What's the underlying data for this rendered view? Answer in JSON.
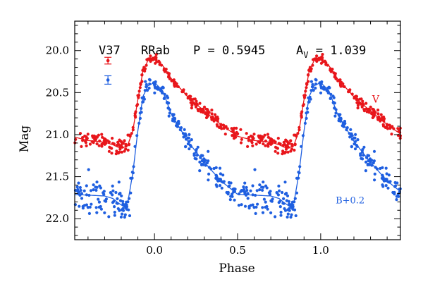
{
  "chart_data": {
    "type": "scatter",
    "title": "",
    "xlabel": "Phase",
    "ylabel": "Mag",
    "xlim": [
      -0.48,
      1.48
    ],
    "ylim": [
      22.25,
      19.65
    ],
    "y_inverted": true,
    "x_ticks": [
      "0.0",
      "0.5",
      "1.0"
    ],
    "x_tick_values": [
      0.0,
      0.5,
      1.0
    ],
    "y_ticks": [
      "20.0",
      "20.5",
      "21.0",
      "21.5",
      "22.0"
    ],
    "y_tick_values": [
      20.0,
      20.5,
      21.0,
      21.5,
      22.0
    ],
    "annotation": {
      "star": "V37",
      "type": "RRab",
      "period": "P = 0.5945",
      "amp_prefix": "A",
      "amp_sub": "V",
      "amp_value": " = 1.039"
    },
    "series": [
      {
        "name": "V",
        "color": "#e8161b",
        "offset": 0.0,
        "model_phase": [
          0.0,
          0.05,
          0.1,
          0.2,
          0.3,
          0.4,
          0.5,
          0.6,
          0.7,
          0.75,
          0.78,
          0.81,
          0.84,
          0.87,
          0.9,
          0.93,
          0.96,
          1.0
        ],
        "model_mag": [
          20.1,
          20.18,
          20.33,
          20.55,
          20.72,
          20.88,
          21.02,
          21.07,
          21.09,
          21.12,
          21.15,
          21.16,
          21.12,
          20.95,
          20.58,
          20.25,
          20.12,
          20.1
        ],
        "error_bar": {
          "x": -0.28,
          "y": 20.12,
          "err": 0.04
        }
      },
      {
        "name": "B+0.2",
        "color": "#1f5fe0",
        "offset": 0.2,
        "model_phase": [
          0.0,
          0.05,
          0.1,
          0.2,
          0.3,
          0.4,
          0.5,
          0.6,
          0.7,
          0.75,
          0.78,
          0.81,
          0.84,
          0.87,
          0.9,
          0.93,
          0.96,
          1.0
        ],
        "model_mag": [
          20.38,
          20.48,
          20.75,
          21.08,
          21.33,
          21.55,
          21.71,
          21.72,
          21.73,
          21.76,
          21.81,
          21.85,
          21.8,
          21.45,
          20.95,
          20.55,
          20.42,
          20.38
        ],
        "error_bar": {
          "x": -0.28,
          "y": 20.35,
          "err": 0.05
        }
      }
    ],
    "legend": [
      {
        "label": "V",
        "color": "#e8161b",
        "x": 1.31,
        "y": 20.62
      },
      {
        "label": "B+0.2",
        "color": "#1f5fe0",
        "x": 1.09,
        "y": 21.82
      }
    ]
  }
}
